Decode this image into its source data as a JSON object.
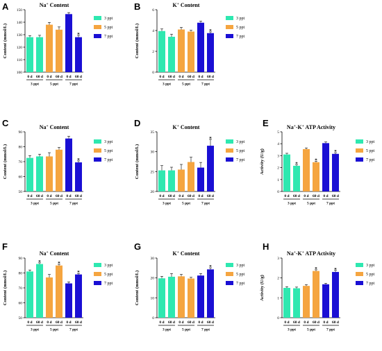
{
  "chart_data": [
    {
      "panel": "A",
      "type": "bar",
      "title": "Na+ Content",
      "title_main": "Na",
      "title_sup": "+",
      "title_rest": " Content",
      "ylabel": "Content (mmol/L)",
      "ylim": [
        100,
        150
      ],
      "yticks": [
        100,
        110,
        120,
        130,
        140,
        150
      ],
      "categories": [
        "0 d",
        "60 d",
        "0 d",
        "60 d",
        "0 d",
        "60 d"
      ],
      "groups": [
        "3 ppt",
        "5 ppt",
        "7 ppt"
      ],
      "values": [
        128,
        128,
        138,
        134,
        146.5,
        128
      ],
      "errors": [
        1.2,
        1.5,
        1.8,
        2.2,
        1.2,
        1.5
      ],
      "significant": [
        false,
        false,
        false,
        false,
        false,
        true
      ],
      "legend": [
        "3 ppt",
        "5 ppt",
        "7 ppt"
      ]
    },
    {
      "panel": "B",
      "type": "bar",
      "title": "K+ Content",
      "title_main": "K",
      "title_sup": "+",
      "title_rest": " Content",
      "ylabel": "Content (mmol/L)",
      "ylim": [
        0,
        6
      ],
      "yticks": [
        0,
        2,
        4,
        6
      ],
      "categories": [
        "0 d",
        "60 d",
        "0 d",
        "60 d",
        "0 d",
        "60 d"
      ],
      "groups": [
        "3 ppt",
        "5 ppt",
        "7 ppt"
      ],
      "values": [
        3.95,
        3.4,
        4.1,
        3.9,
        4.75,
        3.75
      ],
      "errors": [
        0.2,
        0.25,
        0.2,
        0.12,
        0.15,
        0.12
      ],
      "significant": [
        false,
        false,
        false,
        false,
        false,
        true
      ],
      "legend": [
        "3 ppt",
        "5 ppt",
        "7 ppt"
      ]
    },
    {
      "panel": "C",
      "type": "bar",
      "title": "Na+ Content",
      "title_main": "Na",
      "title_sup": "+",
      "title_rest": " Content",
      "ylabel": "Content (mmol/L)",
      "ylim": [
        50,
        90
      ],
      "yticks": [
        50,
        60,
        70,
        80,
        90
      ],
      "categories": [
        "0 d",
        "60 d",
        "0 d",
        "60 d",
        "0 d",
        "60 d"
      ],
      "groups": [
        "3 ppt",
        "5 ppt",
        "7 ppt"
      ],
      "values": [
        72.5,
        73.5,
        73.5,
        78,
        85.5,
        69.5
      ],
      "errors": [
        1.5,
        1.5,
        2.5,
        1.5,
        1.5,
        1.0
      ],
      "significant": [
        false,
        false,
        false,
        false,
        false,
        true
      ],
      "legend": [
        "3 ppt",
        "5 ppt",
        "7 ppt"
      ]
    },
    {
      "panel": "D",
      "type": "bar",
      "title": "K+ Content",
      "title_main": "K",
      "title_sup": "+",
      "title_rest": " Content",
      "ylabel": "Content (mmol/L)",
      "ylim": [
        20,
        35
      ],
      "yticks": [
        20,
        25,
        30,
        35
      ],
      "categories": [
        "0 d",
        "60 d",
        "0 d",
        "60 d",
        "0 d",
        "60 d"
      ],
      "groups": [
        "3 ppt",
        "5 ppt",
        "7 ppt"
      ],
      "values": [
        25.3,
        25.3,
        25.5,
        27.4,
        26,
        31.5
      ],
      "errors": [
        1.2,
        0.8,
        1.3,
        1.2,
        1.3,
        1.6
      ],
      "significant": [
        false,
        false,
        false,
        false,
        false,
        true
      ],
      "legend": [
        "3 ppt",
        "5 ppt",
        "7 ppt"
      ]
    },
    {
      "panel": "E",
      "type": "bar",
      "title": "Na+-K+ ATP Activity",
      "title_main": "Na",
      "title_sup": "+",
      "title_mid": "-K",
      "title_sup2": "+",
      "title_rest": " ATP Activity",
      "ylabel": "Activity (U/g)",
      "ylim": [
        0,
        5
      ],
      "yticks": [
        0,
        1,
        2,
        3,
        4,
        5
      ],
      "categories": [
        "0 d",
        "60 d",
        "0 d",
        "60 d",
        "0 d",
        "60 d"
      ],
      "groups": [
        "3 ppt",
        "5 ppt",
        "7 ppt"
      ],
      "values": [
        3.1,
        2.15,
        3.55,
        2.45,
        4.05,
        3.15
      ],
      "errors": [
        0.1,
        0.08,
        0.1,
        0.08,
        0.1,
        0.1
      ],
      "significant": [
        false,
        true,
        false,
        true,
        false,
        true
      ],
      "legend": [
        "3 ppt",
        "5 ppt",
        "7 ppt"
      ]
    },
    {
      "panel": "F",
      "type": "bar",
      "title": "Na+ Content",
      "title_main": "Na",
      "title_sup": "+",
      "title_rest": " Content",
      "ylabel": "Content (mmol/L)",
      "ylim": [
        50,
        90
      ],
      "yticks": [
        50,
        60,
        70,
        80,
        90
      ],
      "categories": [
        "0 d",
        "60 d",
        "0 d",
        "60 d",
        "0 d",
        "60 d"
      ],
      "groups": [
        "3 ppt",
        "5 ppt",
        "7 ppt"
      ],
      "values": [
        81,
        86,
        77,
        85,
        73,
        79
      ],
      "errors": [
        1.0,
        0.8,
        2.0,
        0.8,
        1.0,
        0.7
      ],
      "significant": [
        false,
        true,
        false,
        true,
        false,
        true
      ],
      "legend": [
        "3 ppt",
        "5 ppt",
        "7 ppt"
      ]
    },
    {
      "panel": "G",
      "type": "bar",
      "title": "K+ Content",
      "title_main": "K",
      "title_sup": "+",
      "title_rest": " Content",
      "ylabel": "Content (mmol/L)",
      "ylim": [
        0,
        30
      ],
      "yticks": [
        0,
        10,
        20,
        30
      ],
      "categories": [
        "0 d",
        "60 d",
        "0 d",
        "60 d",
        "0 d",
        "60 d"
      ],
      "groups": [
        "3 ppt",
        "5 ppt",
        "7 ppt"
      ],
      "values": [
        19.8,
        20.6,
        20.8,
        19.7,
        21.2,
        24.3
      ],
      "errors": [
        1.0,
        1.6,
        1.0,
        0.6,
        1.0,
        0.8
      ],
      "significant": [
        false,
        false,
        false,
        false,
        false,
        true
      ],
      "legend": [
        "3 ppt",
        "5 ppt",
        "7 ppt"
      ]
    },
    {
      "panel": "H",
      "type": "bar",
      "title": "Na+-K+ ATP Activity",
      "title_main": "Na",
      "title_sup": "+",
      "title_mid": "-K",
      "title_sup2": "+",
      "title_rest": " ATP Activity",
      "ylabel": "Activity (U/g)",
      "ylim": [
        0,
        3
      ],
      "yticks": [
        0,
        1,
        2,
        3
      ],
      "categories": [
        "0 d",
        "60 d",
        "0 d",
        "60 d",
        "0 d",
        "60 d"
      ],
      "groups": [
        "3 ppt",
        "5 ppt",
        "7 ppt"
      ],
      "values": [
        1.5,
        1.48,
        1.6,
        2.35,
        1.68,
        2.3
      ],
      "errors": [
        0.06,
        0.06,
        0.06,
        0.06,
        0.05,
        0.08
      ],
      "significant": [
        false,
        false,
        false,
        true,
        false,
        true
      ],
      "legend": [
        "3 ppt",
        "5 ppt",
        "7 ppt"
      ]
    }
  ],
  "colors": {
    "c3": "#2ee8b0",
    "c5": "#f5a540",
    "c7": "#1a0fd4"
  },
  "star_symbol": "*"
}
